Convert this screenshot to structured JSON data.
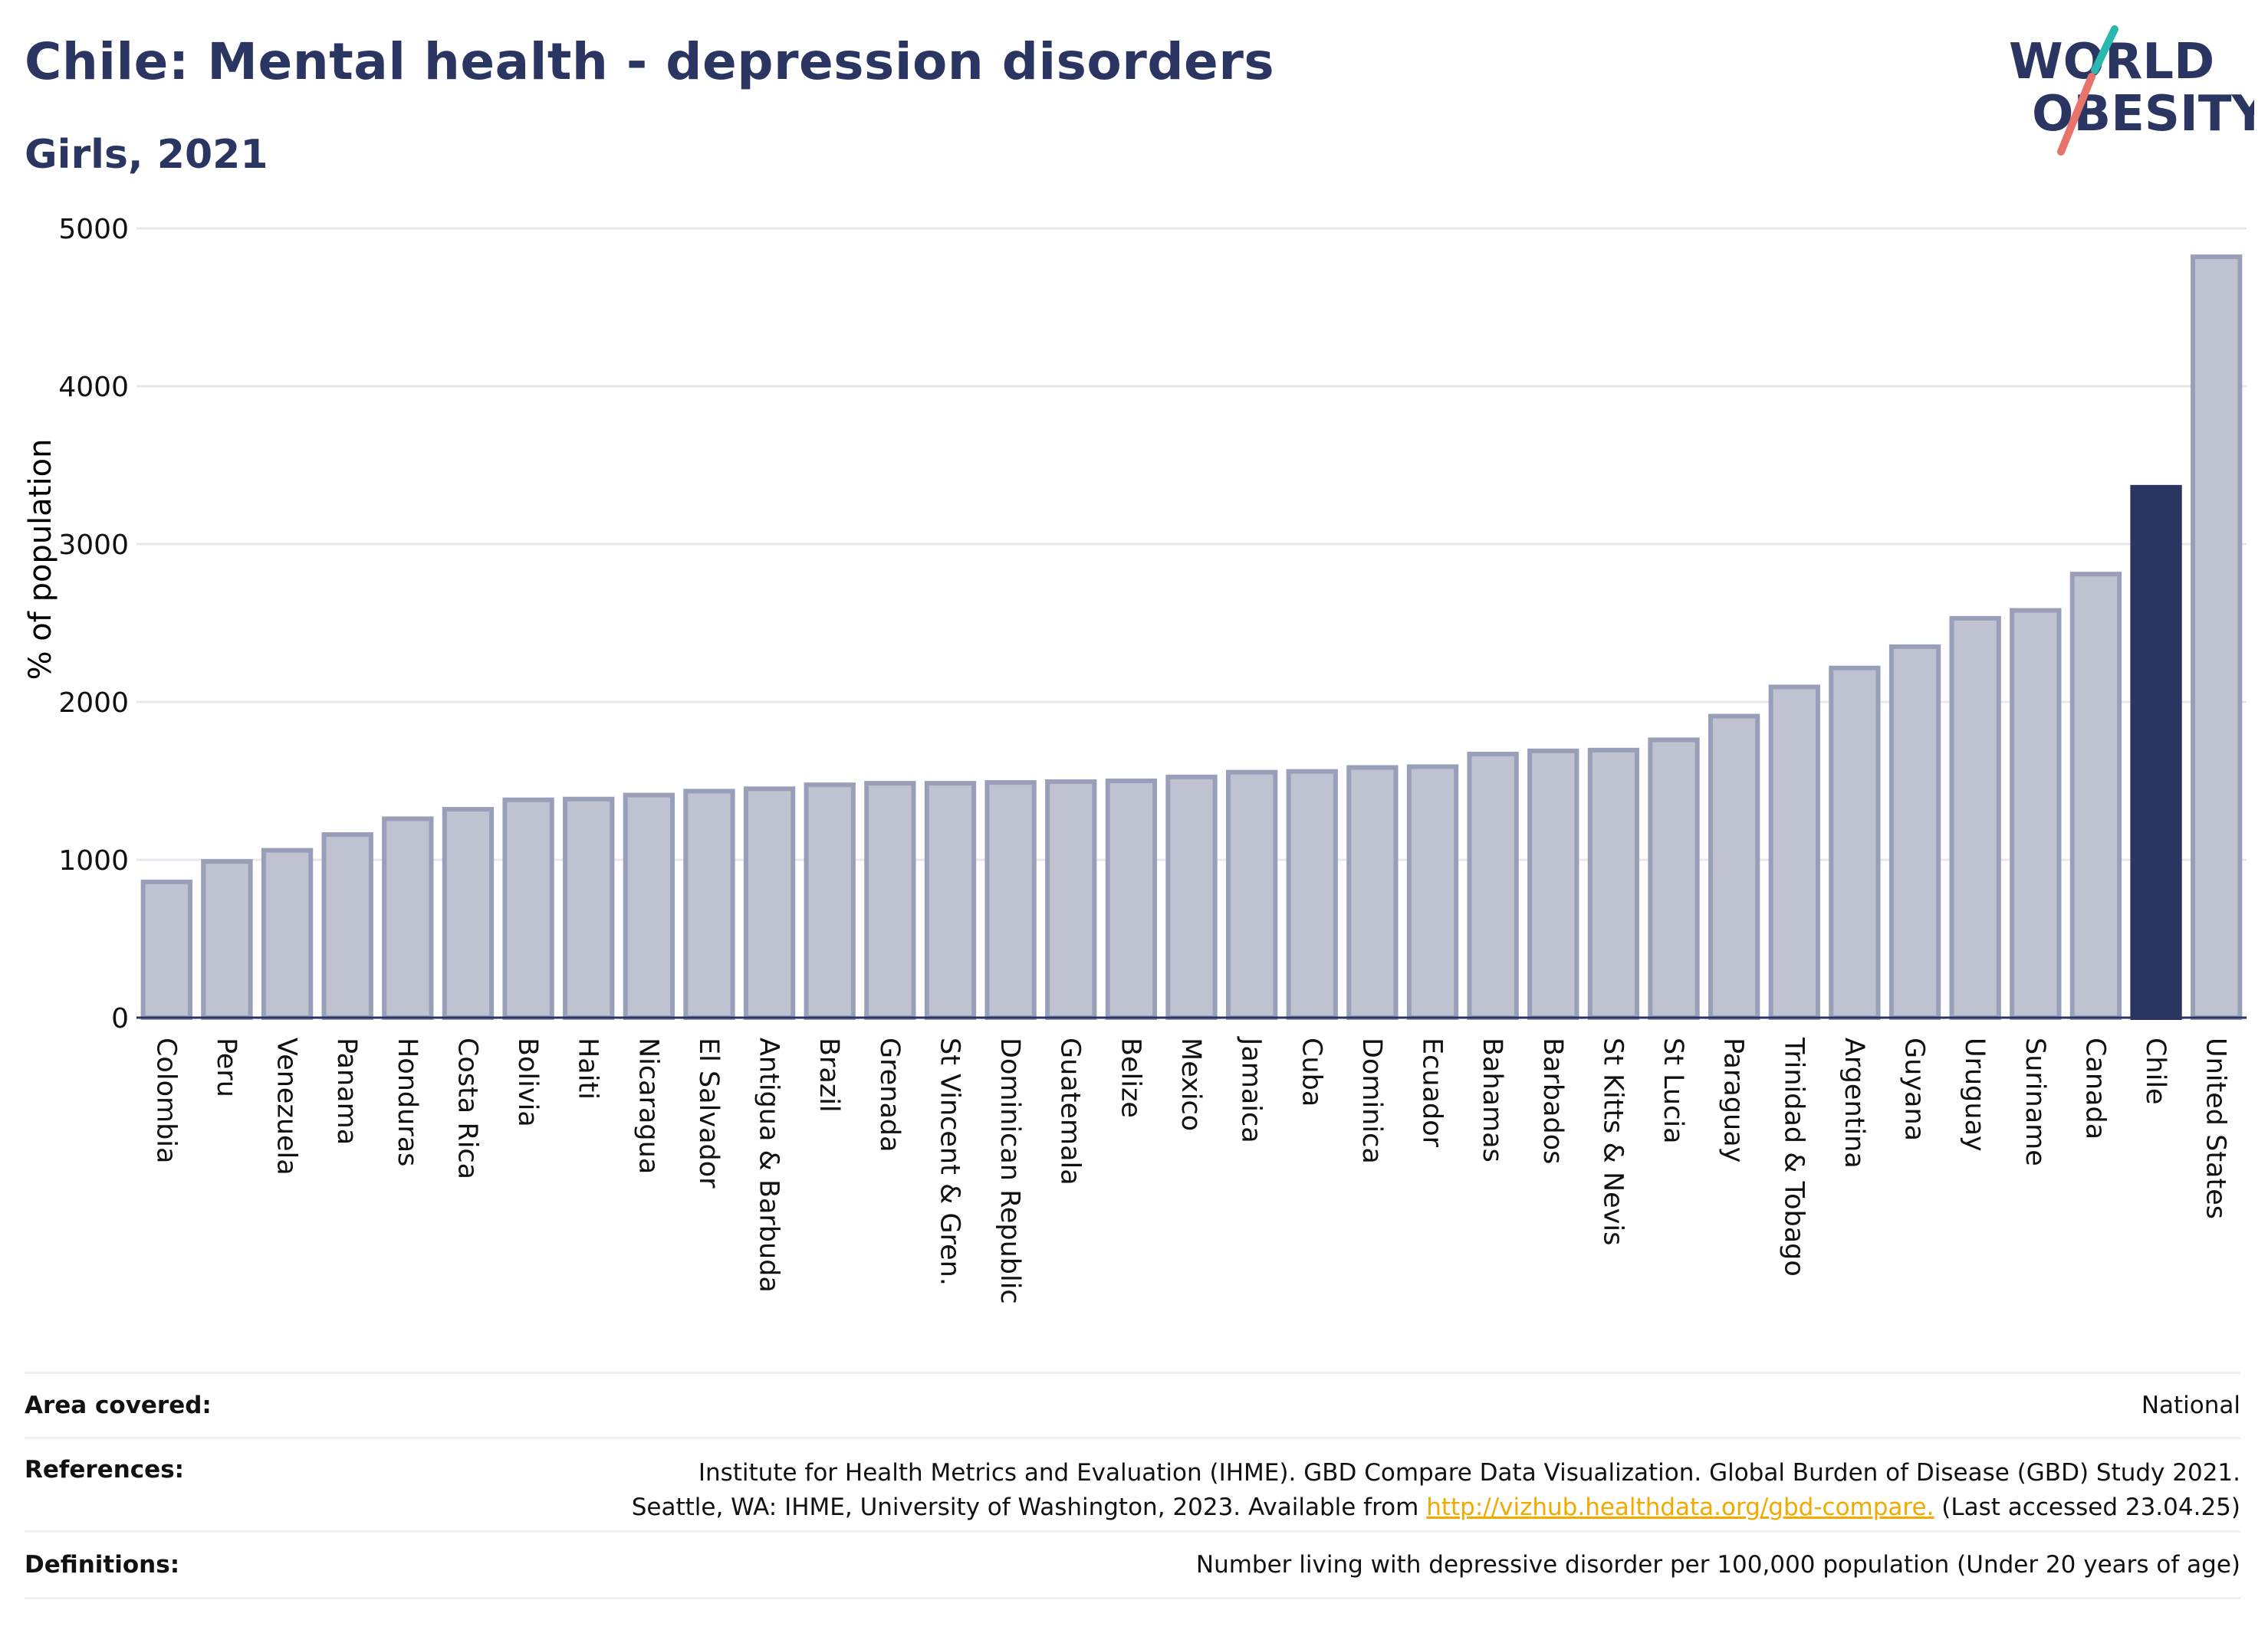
{
  "header": {
    "title": "Chile: Mental health - depression disorders",
    "subtitle": "Girls, 2021"
  },
  "logo": {
    "line1": "WORLD",
    "line2": "OBESITY"
  },
  "chart_data": {
    "type": "bar",
    "ylabel": "% of population",
    "ylim": [
      0,
      5000
    ],
    "yticks": [
      0,
      1000,
      2000,
      3000,
      4000,
      5000
    ],
    "grid": true,
    "categories": [
      "Colombia",
      "Peru",
      "Venezuela",
      "Panama",
      "Honduras",
      "Costa Rica",
      "Bolivia",
      "Haiti",
      "Nicaragua",
      "El Salvador",
      "Antigua & Barbuda",
      "Brazil",
      "Grenada",
      "St Vincent & Gren.",
      "Dominican Republic",
      "Guatemala",
      "Belize",
      "Mexico",
      "Jamaica",
      "Cuba",
      "Dominica",
      "Ecuador",
      "Bahamas",
      "Barbados",
      "St Kitts & Nevis",
      "St Lucia",
      "Paraguay",
      "Trinidad & Tobago",
      "Argentina",
      "Guyana",
      "Uruguay",
      "Suriname",
      "Canada",
      "Chile",
      "United States"
    ],
    "values": [
      860,
      990,
      1060,
      1160,
      1260,
      1320,
      1380,
      1385,
      1410,
      1435,
      1450,
      1475,
      1485,
      1485,
      1490,
      1495,
      1500,
      1525,
      1555,
      1560,
      1585,
      1590,
      1670,
      1690,
      1695,
      1760,
      1910,
      2095,
      2215,
      2350,
      2530,
      2580,
      2810,
      3360,
      4820
    ],
    "highlight": "Chile",
    "colors": {
      "bar": "#bfc2d0",
      "bar_edge": "#9a9fb9",
      "highlight": "#2b3561",
      "grid": "#e6e8f0",
      "axis": "#2b3561"
    }
  },
  "footer": {
    "area_label": "Area covered:",
    "area_value": "National",
    "references_label": "References:",
    "references_line1": "Institute for Health Metrics and Evaluation (IHME). GBD Compare Data Visualization. Global Burden of Disease (GBD) Study 2021.",
    "references_line2_pre": "Seattle, WA: IHME, University of Washington, 2023. Available from",
    "references_link": "http://vizhub.healthdata.org/gbd-compare.",
    "references_line2_post": "(Last accessed 23.04.25)",
    "definitions_label": "Definitions:",
    "definitions_value": "Number living with depressive disorder per 100,000 population (Under 20 years of age)"
  }
}
